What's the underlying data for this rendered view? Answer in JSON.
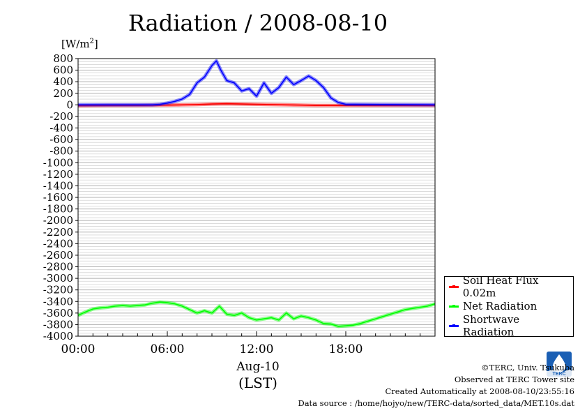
{
  "chart_data": {
    "type": "line",
    "title": "Radiation / 2008-08-10",
    "yunit_base": "[W/m",
    "yunit_sup": "2",
    "yunit_end": "]",
    "ylim": [
      -4000,
      800
    ],
    "ytick_step": 200,
    "yticks": [
      "800",
      "600",
      "400",
      "200",
      "0",
      "-200",
      "-400",
      "-600",
      "-800",
      "-1000",
      "-1200",
      "-1400",
      "-1600",
      "-1800",
      "-2000",
      "-2200",
      "-2400",
      "-2600",
      "-2800",
      "-3000",
      "-3200",
      "-3400",
      "-3600",
      "-3800",
      "-4000"
    ],
    "xlim_hours": [
      0,
      24
    ],
    "xticks": [
      {
        "hour": 0,
        "label": "00:00"
      },
      {
        "hour": 6,
        "label": "06:00"
      },
      {
        "hour": 12,
        "label": "12:00"
      },
      {
        "hour": 18,
        "label": "18:00"
      }
    ],
    "xlabel_date": "Aug-10",
    "xlabel": "(LST)",
    "grid": true,
    "legend_position": "right",
    "series": [
      {
        "name": "Soil Heat Flux 0.02m",
        "color": "#ff0000",
        "x": [
          0,
          2,
          4,
          6,
          7,
          8,
          9,
          10,
          11,
          12,
          13,
          14,
          15,
          16,
          17,
          18,
          20,
          22,
          24
        ],
        "values": [
          -15,
          -12,
          -10,
          -5,
          0,
          5,
          15,
          20,
          15,
          10,
          5,
          0,
          -5,
          -10,
          -10,
          -12,
          -12,
          -10,
          -10
        ]
      },
      {
        "name": "Net Radiation",
        "color": "#00ff00",
        "x": [
          0,
          0.5,
          1,
          1.5,
          2,
          2.5,
          3,
          3.5,
          4,
          4.5,
          5,
          5.5,
          6,
          6.5,
          7,
          7.5,
          8,
          8.5,
          9,
          9.5,
          10,
          10.5,
          11,
          11.5,
          12,
          12.5,
          13,
          13.5,
          14,
          14.5,
          15,
          15.5,
          16,
          16.5,
          17,
          17.5,
          18,
          18.5,
          19,
          19.5,
          20,
          20.5,
          21,
          21.5,
          22,
          22.5,
          23,
          23.5,
          24
        ],
        "values": [
          -3640,
          -3580,
          -3530,
          -3510,
          -3500,
          -3480,
          -3470,
          -3480,
          -3470,
          -3460,
          -3430,
          -3410,
          -3420,
          -3440,
          -3480,
          -3540,
          -3600,
          -3560,
          -3600,
          -3480,
          -3620,
          -3640,
          -3600,
          -3680,
          -3720,
          -3700,
          -3680,
          -3720,
          -3600,
          -3700,
          -3650,
          -3680,
          -3720,
          -3780,
          -3790,
          -3830,
          -3820,
          -3810,
          -3780,
          -3740,
          -3700,
          -3660,
          -3620,
          -3580,
          -3540,
          -3520,
          -3500,
          -3480,
          -3440
        ]
      },
      {
        "name": "Shortwave Radiation",
        "color": "#0000ff",
        "x": [
          0,
          5,
          5.5,
          6,
          6.5,
          7,
          7.5,
          8,
          8.5,
          9,
          9.3,
          9.6,
          10,
          10.5,
          11,
          11.5,
          12,
          12.5,
          13,
          13.5,
          14,
          14.5,
          15,
          15.5,
          16,
          16.5,
          17,
          17.5,
          18,
          24
        ],
        "values": [
          0,
          0,
          10,
          30,
          60,
          100,
          180,
          380,
          480,
          680,
          760,
          600,
          420,
          380,
          240,
          280,
          150,
          380,
          200,
          300,
          480,
          350,
          420,
          500,
          420,
          300,
          120,
          40,
          10,
          0
        ]
      }
    ]
  },
  "credits": {
    "line1": "©TERC, Univ. Tsukuba",
    "line2": "Observed at TERC Tower site",
    "line3": "Created Automatically at 2008-08-10/23:55:16",
    "line4": "Data source : /home/hojyo/new/TERC-data/sorted_data/MET.10s.dat"
  },
  "logo": {
    "icon": "terc-logo-icon",
    "text": "TERC",
    "color": "#1a5fb4"
  }
}
